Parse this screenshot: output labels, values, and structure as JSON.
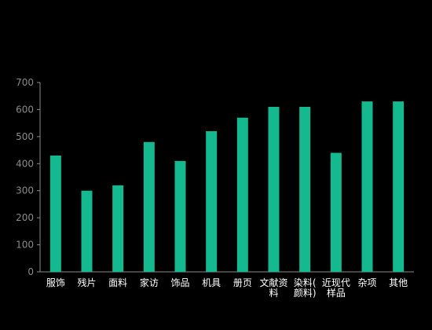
{
  "chart_data": {
    "type": "bar",
    "title": "",
    "xlabel": "",
    "ylabel": "",
    "categories": [
      [
        "服饰"
      ],
      [
        "残片"
      ],
      [
        "面料"
      ],
      [
        "家访"
      ],
      [
        "饰品"
      ],
      [
        "机具"
      ],
      [
        "册页"
      ],
      [
        "文献资",
        "料"
      ],
      [
        "染料(",
        "颜料)"
      ],
      [
        "近现代",
        "样品"
      ],
      [
        "杂项"
      ],
      [
        "其他"
      ]
    ],
    "values": [
      430,
      300,
      320,
      480,
      410,
      520,
      570,
      610,
      610,
      440,
      630,
      630
    ],
    "ylim": [
      0,
      700
    ],
    "yticks": [
      0,
      100,
      200,
      300,
      400,
      500,
      600,
      700
    ],
    "grid": false,
    "legend": "none",
    "colors": {
      "bar": "#14b98f",
      "axis": "#8a8a8a",
      "y_tick_text": "#8a8a8a",
      "x_tick_text": "#ffffff",
      "background": "#000000"
    }
  }
}
